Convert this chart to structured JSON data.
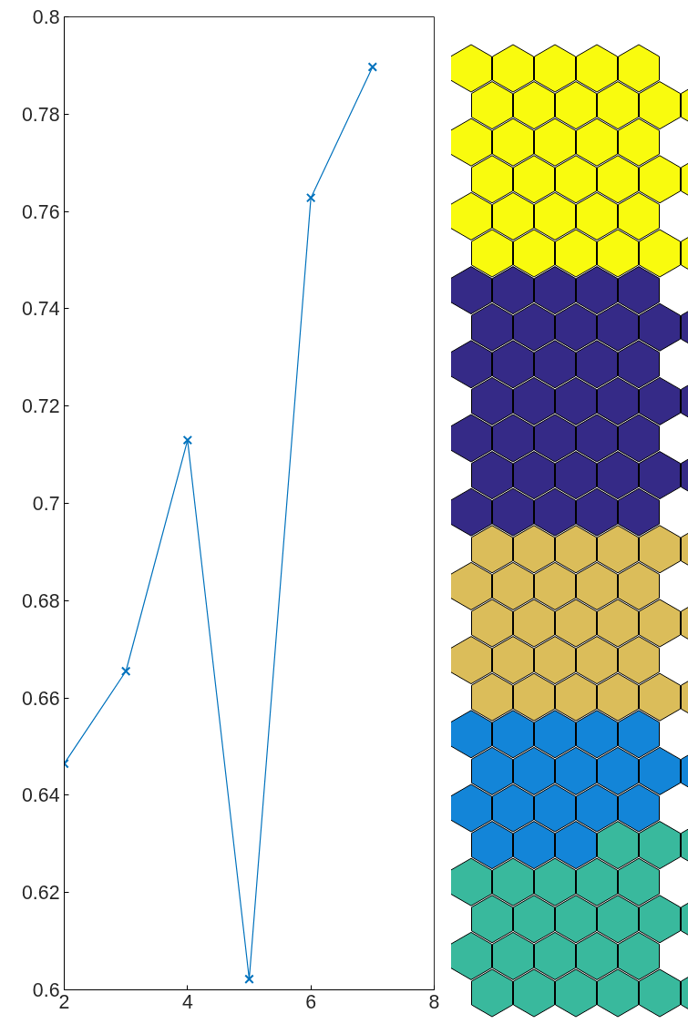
{
  "chart_data": {
    "type": "line",
    "x": [
      2,
      3,
      4,
      5,
      6,
      7
    ],
    "series": [
      {
        "color": "#0072bd",
        "values": [
          0.6465,
          0.6655,
          0.713,
          0.6022,
          0.7628,
          0.7897
        ]
      }
    ],
    "xlim": [
      2,
      8
    ],
    "ylim": [
      0.6,
      0.8
    ],
    "xticks": [
      2,
      4,
      6,
      8
    ],
    "yticks": [
      0.6,
      0.62,
      0.64,
      0.66,
      0.68,
      0.7,
      0.72,
      0.74,
      0.76,
      0.78,
      0.8
    ],
    "marker": "cross",
    "line_style": "solid",
    "grid": false
  }
}
